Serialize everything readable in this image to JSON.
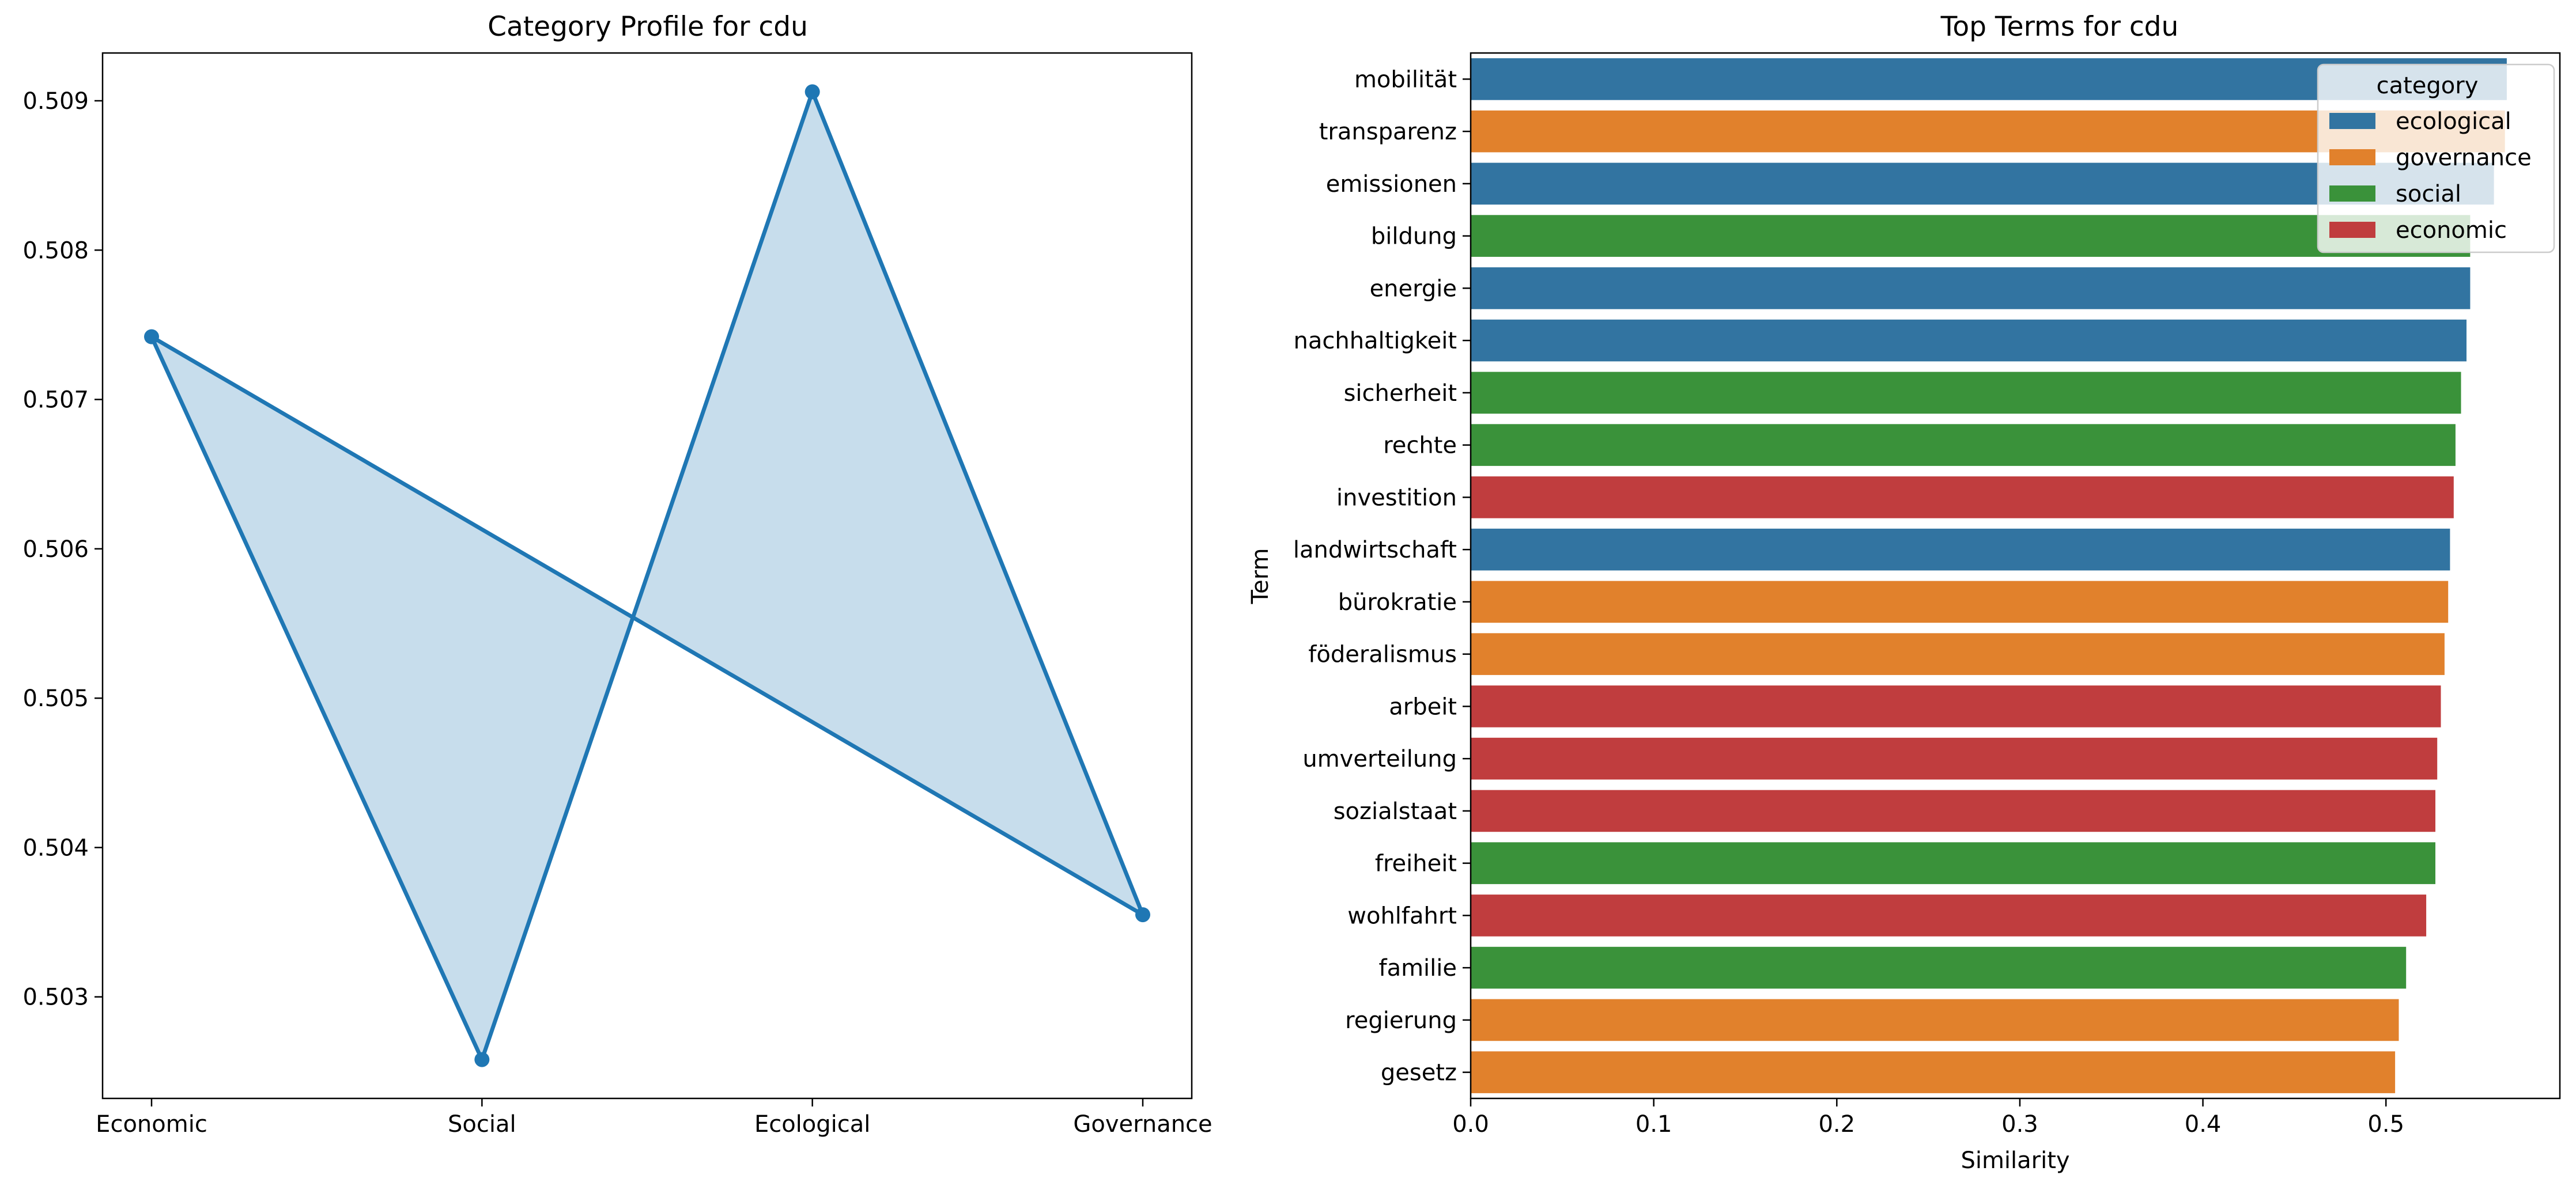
{
  "chart_data": [
    {
      "type": "line",
      "title": "Category Profile for cdu",
      "xlabel": "",
      "ylabel": "",
      "categories": [
        "Economic",
        "Social",
        "Ecological",
        "Governance"
      ],
      "values": [
        0.50742,
        0.50258,
        0.50906,
        0.50355
      ],
      "closed_polygon": true,
      "fill": true,
      "color": "#1f77b4",
      "ylim": [
        0.50232,
        0.50932
      ],
      "yticks": [
        "0.503",
        "0.504",
        "0.505",
        "0.506",
        "0.507",
        "0.508",
        "0.509"
      ],
      "grid": false
    },
    {
      "type": "bar",
      "orientation": "horizontal",
      "title": "Top Terms for cdu",
      "xlabel": "Similarity",
      "ylabel": "Term",
      "xlim": [
        0,
        0.595
      ],
      "xticks": [
        "0.0",
        "0.1",
        "0.2",
        "0.3",
        "0.4",
        "0.5"
      ],
      "grid": false,
      "legend": {
        "title": "category",
        "position": "top-right",
        "entries": [
          {
            "label": "ecological",
            "color": "#3274a1"
          },
          {
            "label": "governance",
            "color": "#e1812c"
          },
          {
            "label": "social",
            "color": "#3a923a"
          },
          {
            "label": "economic",
            "color": "#c03d3e"
          }
        ]
      },
      "categories": [
        "mobilität",
        "transparenz",
        "emissionen",
        "bildung",
        "energie",
        "nachhaltigkeit",
        "sicherheit",
        "rechte",
        "investition",
        "landwirtschaft",
        "bürokratie",
        "föderalismus",
        "arbeit",
        "umverteilung",
        "sozialstaat",
        "freiheit",
        "wohlfahrt",
        "familie",
        "regierung",
        "gesetz"
      ],
      "values": [
        0.566,
        0.565,
        0.559,
        0.546,
        0.546,
        0.544,
        0.541,
        0.538,
        0.537,
        0.535,
        0.534,
        0.532,
        0.53,
        0.528,
        0.527,
        0.527,
        0.522,
        0.511,
        0.507,
        0.505
      ],
      "groups": [
        "ecological",
        "governance",
        "ecological",
        "social",
        "ecological",
        "ecological",
        "social",
        "social",
        "economic",
        "ecological",
        "governance",
        "governance",
        "economic",
        "economic",
        "economic",
        "social",
        "economic",
        "social",
        "governance",
        "governance"
      ]
    }
  ]
}
